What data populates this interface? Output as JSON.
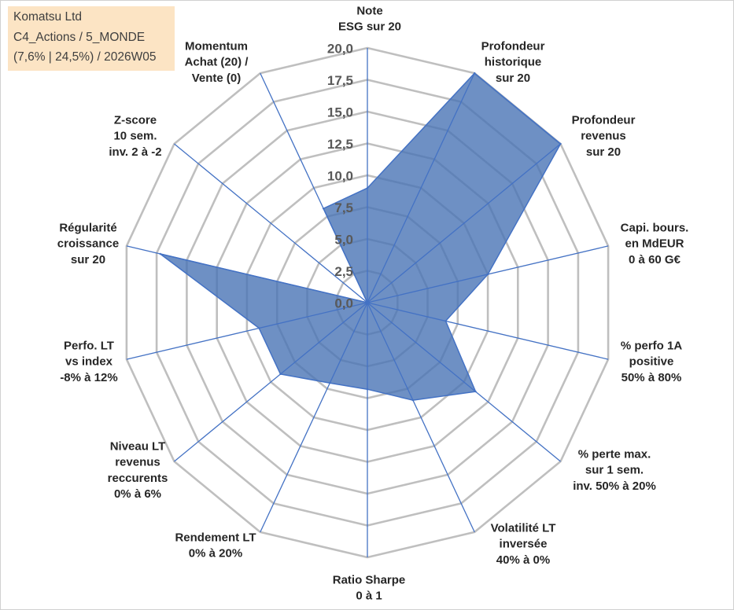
{
  "info_box": {
    "lines": [
      "Komatsu Ltd",
      "C4_Actions / 5_MONDE",
      "(7,6% | 24,5%) / 2026W05"
    ],
    "background": "#FCE4C4"
  },
  "chart_data": {
    "type": "radar",
    "categories": [
      [
        "Note",
        "ESG sur 20"
      ],
      [
        "Profondeur",
        "historique",
        "sur 20"
      ],
      [
        "Profondeur",
        "revenus",
        "sur 20"
      ],
      [
        "Capi. bours.",
        "en MdEUR",
        "0 à 60 G€"
      ],
      [
        "% perfo 1A",
        "positive",
        "50% à 80%"
      ],
      [
        "% perte max.",
        "sur 1 sem.",
        "inv. 50% à 20%"
      ],
      [
        "Volatilité LT",
        "inversée",
        "40% à 0%"
      ],
      [
        "Ratio Sharpe",
        "0 à 1"
      ],
      [
        "Rendement LT",
        "0% à 20%"
      ],
      [
        "Niveau LT",
        "revenus",
        "reccurents",
        "0% à 6%"
      ],
      [
        "Perfo. LT",
        "vs index",
        "-8% à 12%"
      ],
      [
        "Régularité",
        "croissance",
        "sur 20"
      ],
      [
        "Z-score",
        "10 sem.",
        "inv. 2 à -2"
      ],
      [
        "Momentum",
        "Achat (20) /",
        "Vente (0)"
      ]
    ],
    "series": [
      {
        "values": [
          9,
          20,
          20,
          10,
          6.5,
          11.2,
          8.5,
          6.8,
          7,
          9,
          9,
          17.2,
          0,
          8.2
        ]
      }
    ],
    "rlim": [
      0,
      20
    ],
    "tick_step": 2.5,
    "tick_labels": [
      "0,0",
      "2,5",
      "5,0",
      "7,5",
      "10,0",
      "12,5",
      "15,0",
      "17,5",
      "20,0"
    ],
    "grid": true,
    "legend": false,
    "colors": {
      "grid": "#BFBFBF",
      "spoke": "#4472C4",
      "series_fill": "#4A74B5",
      "series_stroke": "#4472C4",
      "tick_label": "#595959",
      "category_label": "#262626"
    }
  }
}
